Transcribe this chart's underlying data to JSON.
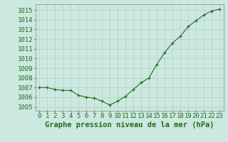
{
  "x": [
    0,
    1,
    2,
    3,
    4,
    5,
    6,
    7,
    8,
    9,
    10,
    11,
    12,
    13,
    14,
    15,
    16,
    17,
    18,
    19,
    20,
    21,
    22,
    23
  ],
  "y": [
    1007.0,
    1007.0,
    1006.8,
    1006.7,
    1006.7,
    1006.2,
    1006.0,
    1005.9,
    1005.6,
    1005.2,
    1005.6,
    1006.1,
    1006.8,
    1007.5,
    1008.0,
    1009.4,
    1010.6,
    1011.6,
    1012.3,
    1013.3,
    1013.9,
    1014.5,
    1014.9,
    1015.1
  ],
  "line_color": "#1e6e1e",
  "marker_color": "#1e6e1e",
  "bg_color": "#cce8e0",
  "grid_color": "#aaccbb",
  "xlabel": "Graphe pression niveau de la mer (hPa)",
  "tick_color": "#1e6e1e",
  "ylabel_ticks": [
    1005,
    1006,
    1007,
    1008,
    1009,
    1010,
    1011,
    1012,
    1013,
    1014,
    1015
  ],
  "ylim": [
    1004.6,
    1015.6
  ],
  "xlim": [
    -0.5,
    23.5
  ],
  "xticks": [
    0,
    1,
    2,
    3,
    4,
    5,
    6,
    7,
    8,
    9,
    10,
    11,
    12,
    13,
    14,
    15,
    16,
    17,
    18,
    19,
    20,
    21,
    22,
    23
  ],
  "font_size_tick": 6.5,
  "font_size_xlabel": 7.5
}
